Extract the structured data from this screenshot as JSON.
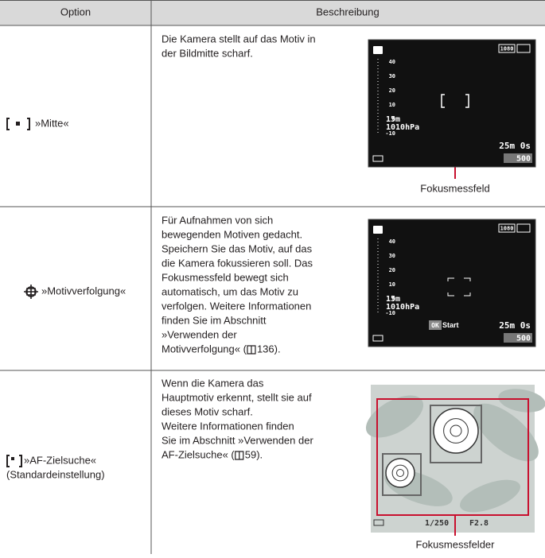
{
  "header": {
    "option": "Option",
    "description": "Beschreibung"
  },
  "rows": [
    {
      "option": [
        "»Mitte«"
      ],
      "description": [
        "Die Kamera stellt auf das Motiv in",
        "der Bildmitte scharf."
      ],
      "caption": "Fokusmessfeld",
      "screen": {
        "badge": "1080",
        "scale": [
          "40",
          "30",
          "20",
          "10",
          "0",
          "-10"
        ],
        "altitude": "15m",
        "pressure": "1010hPa",
        "time": "25m 0s",
        "shots": "500"
      }
    },
    {
      "option": [
        "»Motivverfolgung«"
      ],
      "description": [
        "Für Aufnahmen von sich",
        "bewegenden Motiven gedacht.",
        "Speichern Sie das Motiv, auf das",
        "die Kamera fokussieren soll. Das",
        "Fokusmessfeld bewegt sich",
        "automatisch, um das Motiv zu",
        "verfolgen. Weitere Informationen",
        "finden Sie im Abschnitt",
        "»Verwenden der"
      ],
      "reference": [
        "Motivverfolgung« (",
        "136)."
      ],
      "screen": {
        "badge": "1080",
        "scale": [
          "40",
          "30",
          "20",
          "10",
          "0",
          "-10"
        ],
        "altitude": "15m",
        "pressure": "1010hPa",
        "ok": "OK",
        "start": "Start",
        "time": "25m 0s",
        "shots": "500"
      }
    },
    {
      "option": [
        "»AF-Zielsuche«",
        "(Standardeinstellung)"
      ],
      "description": [
        "Wenn die Kamera das",
        "Hauptmotiv erkennt, stellt sie auf",
        "dieses Motiv scharf.",
        "Weitere Informationen finden",
        "Sie im Abschnitt »Verwenden der"
      ],
      "reference": [
        "AF-Zielsuche« (",
        "59)."
      ],
      "caption": "Fokusmessfelder",
      "photo": {
        "shutter": "1/250",
        "aperture": "F2.8"
      }
    }
  ]
}
